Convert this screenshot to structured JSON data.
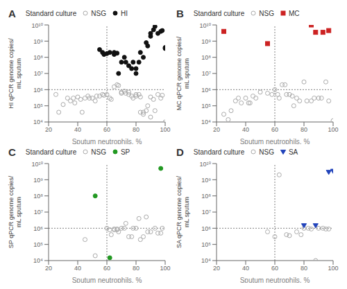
{
  "chart_data": [
    {
      "type": "scatter",
      "title": "A",
      "xlabel": "Sputum neutrophils, %",
      "ylabel": "HI qPCR genome copies/\nmL sputum",
      "legend_title": "Standard culture",
      "log": "y",
      "grid": false,
      "xlim": [
        20,
        100
      ],
      "xticks": [
        20,
        40,
        60,
        80,
        100
      ],
      "ylim": [
        10000.0,
        10000000000.0
      ],
      "yticks": [
        {
          "value": 10000.0,
          "label": "10⁴"
        },
        {
          "value": 100000.0,
          "label": "10⁵"
        },
        {
          "value": 1000000.0,
          "label": "10⁶"
        },
        {
          "value": 10000000.0,
          "label": "10⁷"
        },
        {
          "value": 100000000.0,
          "label": "10⁸"
        },
        {
          "value": 1000000000.0,
          "label": "10⁹"
        },
        {
          "value": 10000000000.0,
          "label": "10¹⁰"
        }
      ],
      "vlines": [
        60
      ],
      "hlines": [
        1000000.0
      ],
      "series": [
        {
          "name": "NSG",
          "color": "#aaaaaa",
          "marker": "open_circle",
          "x": [
            25,
            27,
            30,
            33,
            35,
            37,
            38,
            40,
            42,
            43,
            45,
            47,
            48,
            50,
            52,
            53,
            55,
            57,
            58,
            60,
            62,
            63,
            65,
            67,
            68,
            70,
            70,
            72,
            73,
            75,
            75,
            77,
            78,
            80,
            80,
            82,
            83,
            83,
            85,
            85,
            87,
            88,
            90,
            90,
            92,
            93,
            95,
            97,
            98,
            100
          ],
          "values": [
            500000.0,
            40000.0,
            120000.0,
            300000.0,
            200000.0,
            300000.0,
            150000.0,
            350000.0,
            250000.0,
            40000.0,
            300000.0,
            400000.0,
            300000.0,
            300000.0,
            200000.0,
            400000.0,
            400000.0,
            500000.0,
            450000.0,
            500000.0,
            300000.0,
            250000.0,
            1500000.0,
            2000000.0,
            1800000.0,
            700000.0,
            600000.0,
            800000.0,
            600000.0,
            500000.0,
            700000.0,
            400000.0,
            300000.0,
            500000.0,
            400000.0,
            500000.0,
            350000.0,
            40000.0,
            40000.0,
            30000.0,
            50000.0,
            100000.0,
            350000.0,
            20000.0,
            250000.0,
            50000.0,
            500000.0,
            300000.0,
            450000.0,
            10000.0
          ]
        },
        {
          "name": "HI",
          "color": "#111111",
          "marker": "circle",
          "x": [
            55,
            57,
            58,
            60,
            62,
            65,
            65,
            67,
            68,
            70,
            72,
            73,
            75,
            77,
            78,
            80,
            80,
            82,
            83,
            85,
            87,
            88,
            90,
            90,
            92,
            93,
            95,
            97,
            98,
            100,
            100
          ],
          "values": [
            300000000.0,
            200000000.0,
            150000000.0,
            170000000.0,
            200000000.0,
            200000000.0,
            150000000.0,
            180000000.0,
            10000000.0,
            50000000.0,
            100000000.0,
            50000000.0,
            30000000.0,
            20000000.0,
            50000000.0,
            20000000.0,
            10000000.0,
            50000000.0,
            200000000.0,
            100000000.0,
            800000000.0,
            500000000.0,
            3000000000.0,
            2000000000.0,
            5000000000.0,
            8000000000.0,
            3000000000.0,
            4000000000.0,
            4500000000.0,
            350000000.0,
            400000000.0
          ]
        }
      ]
    },
    {
      "type": "scatter",
      "title": "B",
      "xlabel": "Sputum neutrophils, %",
      "ylabel": "MC qPCR genome copies/\nmL sputum",
      "legend_title": "Standard culture",
      "log": "y",
      "grid": false,
      "xlim": [
        20,
        100
      ],
      "xticks": [
        20,
        40,
        60,
        80,
        100
      ],
      "ylim": [
        10000.0,
        10000000000.0
      ],
      "yticks": [
        {
          "value": 10000.0,
          "label": "10⁴"
        },
        {
          "value": 100000.0,
          "label": "10⁵"
        },
        {
          "value": 1000000.0,
          "label": "10⁶"
        },
        {
          "value": 10000000.0,
          "label": "10⁷"
        },
        {
          "value": 100000000.0,
          "label": "10⁸"
        },
        {
          "value": 1000000000.0,
          "label": "10⁹"
        },
        {
          "value": 10000000000.0,
          "label": "10¹⁰"
        }
      ],
      "vlines": [
        60
      ],
      "hlines": [
        1000000.0
      ],
      "series": [
        {
          "name": "NSG",
          "color": "#aaaaaa",
          "marker": "open_circle",
          "x": [
            25,
            28,
            30,
            33,
            35,
            37,
            40,
            42,
            43,
            45,
            47,
            50,
            55,
            58,
            60,
            62,
            63,
            65,
            67,
            68,
            70,
            72,
            73,
            75,
            77,
            80,
            82,
            85,
            87,
            90,
            92,
            95,
            97,
            100
          ],
          "values": [
            30000.0,
            14000.0,
            50000.0,
            200000.0,
            300000.0,
            150000.0,
            300000.0,
            150000.0,
            150000.0,
            400000.0,
            300000.0,
            700000.0,
            600000.0,
            500000.0,
            1000000.0,
            500000.0,
            300000.0,
            2000000.0,
            2000000.0,
            500000.0,
            500000.0,
            400000.0,
            100000.0,
            300000.0,
            200000.0,
            3000000.0,
            200000.0,
            200000.0,
            300000.0,
            300000.0,
            300000.0,
            3000000.0,
            200000.0,
            12000.0
          ]
        },
        {
          "name": "MC",
          "color": "#cc2222",
          "marker": "square",
          "x": [
            25,
            55,
            85,
            88,
            93,
            97
          ],
          "values": [
            4000000000.0,
            700000000.0,
            10000000000.0,
            3500000000.0,
            3500000000.0,
            4500000000.0
          ]
        }
      ]
    },
    {
      "type": "scatter",
      "title": "C",
      "xlabel": "Sputum neutrophils, %",
      "ylabel": "SP qPCR genome copies/\nmL sputum",
      "legend_title": "Standard culture",
      "log": "y",
      "grid": false,
      "xlim": [
        20,
        100
      ],
      "xticks": [
        20,
        40,
        60,
        80,
        100
      ],
      "ylim": [
        10000.0,
        10000000000.0
      ],
      "yticks": [
        {
          "value": 10000.0,
          "label": "10⁴"
        },
        {
          "value": 100000.0,
          "label": "10⁵"
        },
        {
          "value": 1000000.0,
          "label": "10⁶"
        },
        {
          "value": 10000000.0,
          "label": "10⁷"
        },
        {
          "value": 100000000.0,
          "label": "10⁸"
        },
        {
          "value": 1000000000.0,
          "label": "10⁹"
        },
        {
          "value": 10000000000.0,
          "label": "10¹⁰"
        }
      ],
      "vlines": [
        60
      ],
      "hlines": [
        1000000.0
      ],
      "series": [
        {
          "name": "NSG",
          "color": "#aaaaaa",
          "marker": "open_circle",
          "x": [
            45,
            52,
            60,
            62,
            63,
            65,
            65,
            67,
            67,
            68,
            70,
            72,
            73,
            75,
            77,
            78,
            80,
            82,
            83,
            85,
            87,
            88,
            90,
            93,
            95,
            97,
            98
          ],
          "values": [
            200000.0,
            20000.0,
            1000000.0,
            800000.0,
            400000.0,
            900000.0,
            800000.0,
            800000.0,
            900000.0,
            600000.0,
            1000000.0,
            1000000.0,
            2000000.0,
            300000.0,
            300000.0,
            1000000.0,
            1000000.0,
            4000000.0,
            200000.0,
            300000.0,
            5000000.0,
            600000.0,
            600000.0,
            1000000.0,
            500000.0,
            500000.0,
            1000000.0
          ]
        },
        {
          "name": "SP",
          "color": "#229922",
          "marker": "circle",
          "x": [
            52,
            62,
            97
          ],
          "values": [
            100000000.0,
            15000.0,
            5000000000.0
          ]
        }
      ]
    },
    {
      "type": "scatter",
      "title": "D",
      "xlabel": "Sputum neutrophils, %",
      "ylabel": "SA qPCR genome copies/\nmL sputum",
      "legend_title": "Standard culture",
      "log": "y",
      "grid": false,
      "xlim": [
        20,
        100
      ],
      "xticks": [
        20,
        40,
        60,
        80,
        100
      ],
      "ylim": [
        10000.0,
        10000000000.0
      ],
      "yticks": [
        {
          "value": 10000.0,
          "label": "10⁴"
        },
        {
          "value": 100000.0,
          "label": "10⁵"
        },
        {
          "value": 1000000.0,
          "label": "10⁶"
        },
        {
          "value": 10000000.0,
          "label": "10⁷"
        },
        {
          "value": 100000000.0,
          "label": "10⁸"
        },
        {
          "value": 1000000000.0,
          "label": "10⁹"
        },
        {
          "value": 10000000000.0,
          "label": "10¹⁰"
        }
      ],
      "vlines": [
        60
      ],
      "hlines": [
        1000000.0
      ],
      "series": [
        {
          "name": "NSG",
          "color": "#aaaaaa",
          "marker": "open_circle",
          "x": [
            55,
            60,
            63,
            68,
            70,
            75,
            78,
            80,
            83,
            85,
            88,
            90,
            93,
            95,
            97
          ],
          "values": [
            600000.0,
            300000.0,
            2000000000.0,
            400000.0,
            350000.0,
            600000.0,
            400000.0,
            1000000.0,
            1000000.0,
            900000.0,
            10000.0,
            1000000.0,
            1000000.0,
            900000.0,
            900000.0
          ]
        },
        {
          "name": "SA",
          "color": "#2244bb",
          "marker": "triangle_down",
          "x": [
            80,
            88,
            97,
            100
          ],
          "values": [
            1500000.0,
            1500000.0,
            3000000000.0,
            3500000000.0
          ]
        }
      ]
    }
  ]
}
